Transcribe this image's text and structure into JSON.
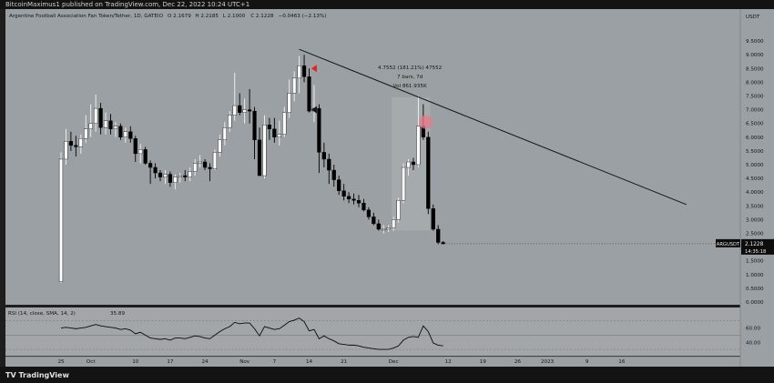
{
  "header": {
    "published": "BitcoinMaximus1 published on TradingView.com, Dec 22, 2022 10:24 UTC+1"
  },
  "footer": {
    "brand": "TradingView"
  },
  "colors": {
    "bg": "#9aa0a3",
    "rsi_bg": "#a2a6a8",
    "up": "#ffffff",
    "down": "#000000",
    "trend": "#151515",
    "marker": "#e32222",
    "circle": "#e87a8a"
  },
  "chart_data": [
    {
      "type": "candlestick",
      "title": "Argentine Football Association Fan Token/Tether, 1D, GATEIO",
      "ohlc_header": [
        "O 2.1679",
        "H 2.2185",
        "L 2.1000",
        "C 2.1228",
        "−0.0463 (−2.13%)"
      ],
      "y_unit": "USDT",
      "ylim": [
        0,
        10
      ],
      "y_ticks": [
        0.0,
        0.5,
        1.0,
        1.5,
        2.0,
        2.5,
        3.0,
        3.5,
        4.0,
        4.5,
        5.0,
        5.5,
        6.0,
        6.5,
        7.0,
        7.5,
        8.0,
        8.5,
        9.0,
        9.5
      ],
      "x_ticks": [
        {
          "label": "25",
          "i": 0
        },
        {
          "label": "Oct",
          "i": 6
        },
        {
          "label": "10",
          "i": 15
        },
        {
          "label": "17",
          "i": 22
        },
        {
          "label": "24",
          "i": 29
        },
        {
          "label": "Nov",
          "i": 37
        },
        {
          "label": "7",
          "i": 43
        },
        {
          "label": "14",
          "i": 50
        },
        {
          "label": "21",
          "i": 57
        },
        {
          "label": "Dec",
          "i": 67
        },
        {
          "label": "12",
          "i": 78
        },
        {
          "label": "19",
          "i": 85
        },
        {
          "label": "26",
          "i": 92
        },
        {
          "label": "2023",
          "i": 98
        },
        {
          "label": "9",
          "i": 106
        },
        {
          "label": "16",
          "i": 113
        }
      ],
      "candles": [
        [
          0.74,
          5.45,
          0.7,
          5.2
        ],
        [
          5.2,
          6.3,
          5.0,
          5.85
        ],
        [
          5.85,
          6.2,
          5.5,
          5.7
        ],
        [
          5.7,
          6.05,
          5.3,
          5.65
        ],
        [
          5.65,
          6.1,
          5.4,
          5.95
        ],
        [
          5.95,
          6.8,
          5.8,
          6.3
        ],
        [
          6.3,
          7.2,
          6.0,
          6.5
        ],
        [
          6.5,
          7.55,
          6.2,
          7.05
        ],
        [
          7.05,
          7.25,
          6.1,
          6.35
        ],
        [
          6.35,
          6.9,
          6.1,
          6.6
        ],
        [
          6.6,
          6.85,
          6.1,
          6.3
        ],
        [
          6.3,
          6.55,
          6.0,
          6.4
        ],
        [
          6.4,
          6.5,
          5.9,
          6.0
        ],
        [
          6.0,
          6.35,
          5.8,
          6.2
        ],
        [
          6.2,
          6.4,
          5.8,
          5.95
        ],
        [
          5.95,
          6.05,
          5.1,
          5.4
        ],
        [
          5.4,
          5.75,
          5.05,
          5.55
        ],
        [
          5.55,
          5.65,
          5.0,
          5.05
        ],
        [
          5.05,
          5.15,
          4.3,
          4.9
        ],
        [
          4.9,
          5.05,
          4.5,
          4.7
        ],
        [
          4.7,
          4.8,
          4.4,
          4.55
        ],
        [
          4.55,
          4.8,
          4.3,
          4.65
        ],
        [
          4.65,
          4.75,
          4.2,
          4.35
        ],
        [
          4.35,
          4.65,
          4.1,
          4.55
        ],
        [
          4.55,
          4.7,
          4.35,
          4.6
        ],
        [
          4.6,
          4.8,
          4.4,
          4.55
        ],
        [
          4.55,
          4.9,
          4.4,
          4.75
        ],
        [
          4.75,
          5.2,
          4.6,
          5.05
        ],
        [
          5.05,
          5.35,
          4.9,
          5.1
        ],
        [
          5.1,
          5.2,
          4.8,
          4.9
        ],
        [
          4.9,
          5.05,
          4.4,
          4.85
        ],
        [
          4.85,
          5.55,
          4.8,
          5.45
        ],
        [
          5.45,
          6.1,
          5.3,
          5.9
        ],
        [
          5.9,
          6.55,
          5.7,
          6.35
        ],
        [
          6.35,
          6.95,
          6.2,
          6.8
        ],
        [
          6.8,
          8.35,
          6.6,
          7.15
        ],
        [
          7.15,
          7.6,
          6.8,
          6.9
        ],
        [
          6.9,
          7.4,
          6.5,
          7.0
        ],
        [
          7.0,
          7.75,
          6.5,
          6.95
        ],
        [
          6.95,
          7.1,
          5.2,
          5.9
        ],
        [
          5.9,
          6.35,
          4.6,
          4.6
        ],
        [
          4.6,
          6.8,
          4.5,
          6.45
        ],
        [
          6.45,
          6.7,
          5.9,
          6.3
        ],
        [
          6.3,
          6.7,
          5.8,
          6.0
        ],
        [
          6.0,
          6.6,
          5.7,
          6.1
        ],
        [
          6.1,
          7.1,
          6.0,
          6.9
        ],
        [
          6.9,
          8.1,
          6.7,
          7.6
        ],
        [
          7.6,
          8.4,
          7.3,
          8.15
        ],
        [
          8.15,
          8.95,
          7.6,
          8.6
        ],
        [
          8.6,
          9.0,
          8.0,
          8.2
        ],
        [
          8.2,
          8.5,
          6.9,
          6.95
        ],
        [
          6.95,
          7.9,
          6.55,
          7.05
        ],
        [
          7.05,
          7.2,
          4.7,
          5.45
        ],
        [
          5.45,
          5.8,
          4.9,
          5.2
        ],
        [
          5.2,
          5.4,
          4.3,
          4.8
        ],
        [
          4.8,
          5.0,
          4.2,
          4.45
        ],
        [
          4.45,
          4.6,
          3.9,
          4.05
        ],
        [
          4.05,
          4.3,
          3.7,
          3.85
        ],
        [
          3.85,
          4.0,
          3.6,
          3.75
        ],
        [
          3.75,
          3.95,
          3.55,
          3.7
        ],
        [
          3.7,
          3.9,
          3.45,
          3.6
        ],
        [
          3.6,
          3.75,
          3.3,
          3.35
        ],
        [
          3.35,
          3.45,
          3.0,
          3.1
        ],
        [
          3.1,
          3.25,
          2.8,
          2.85
        ],
        [
          2.85,
          3.0,
          2.6,
          2.65
        ],
        [
          2.65,
          2.8,
          2.5,
          2.65
        ],
        [
          2.65,
          2.8,
          2.55,
          2.7
        ],
        [
          2.7,
          3.1,
          2.6,
          3.0
        ],
        [
          3.0,
          3.8,
          2.9,
          3.7
        ],
        [
          3.7,
          5.05,
          3.6,
          4.9
        ],
        [
          4.9,
          5.2,
          4.6,
          5.1
        ],
        [
          5.1,
          5.25,
          4.8,
          5.0
        ],
        [
          5.0,
          7.5,
          4.9,
          6.4
        ],
        [
          6.4,
          7.2,
          5.9,
          6.0
        ],
        [
          6.0,
          6.2,
          3.2,
          3.4
        ],
        [
          3.4,
          3.55,
          2.6,
          2.65
        ],
        [
          2.65,
          2.8,
          2.1,
          2.17
        ],
        [
          2.17,
          2.22,
          2.1,
          2.12
        ]
      ],
      "trendline": [
        [
          48,
          9.2
        ],
        [
          126,
          3.55
        ]
      ],
      "annotation": {
        "lines": [
          "4.7552 (181.21%) 47552",
          "7 bars, 7d",
          "Vol 861.935K"
        ],
        "range_from": 67,
        "range_to": 74
      },
      "markers": [
        {
          "type": "arrow-left",
          "i": 51,
          "y": 8.5,
          "color": "#e32222"
        },
        {
          "type": "arrow-left",
          "i": 51,
          "y": 7.0,
          "color": "#151515"
        }
      ],
      "highlight_circle": {
        "i": 73.5,
        "y": 6.55
      },
      "last_price": {
        "symbol": "ARGUSDT",
        "value": "2.1228",
        "countdown": "14:35:18"
      }
    },
    {
      "type": "line",
      "title": "RSI (14, close, SMA, 14, 2)",
      "current_value": "35.89",
      "ylim": [
        25,
        85
      ],
      "y_ticks": [
        40.0,
        60.0
      ],
      "bands": [
        30,
        50,
        70
      ],
      "values": [
        60,
        61,
        60,
        59,
        60,
        61,
        63,
        65,
        63,
        62,
        61,
        60,
        58,
        59,
        57,
        52,
        54,
        50,
        46,
        45,
        44,
        45,
        43,
        46,
        46,
        45,
        47,
        49,
        48,
        46,
        45,
        50,
        55,
        59,
        62,
        68,
        66,
        67,
        67,
        59,
        49,
        62,
        60,
        58,
        59,
        64,
        69,
        71,
        74,
        69,
        56,
        58,
        45,
        49,
        45,
        42,
        38,
        37,
        36,
        36,
        35,
        33,
        32,
        31,
        30,
        30,
        30,
        32,
        35,
        43,
        47,
        48,
        47,
        63,
        55,
        39,
        36,
        35
      ]
    }
  ]
}
